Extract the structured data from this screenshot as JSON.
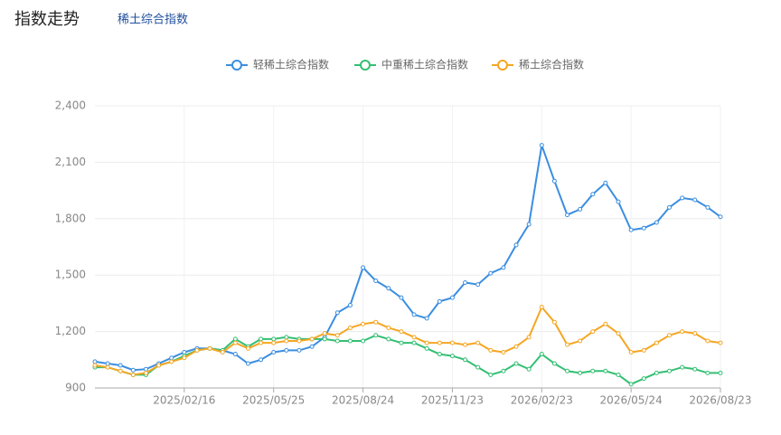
{
  "header": {
    "title": "指数走势",
    "tab": "稀土综合指数"
  },
  "chart_data": {
    "type": "line",
    "categories": [
      null,
      null,
      null,
      null,
      null,
      null,
      null,
      "2025/02/16",
      null,
      null,
      null,
      null,
      null,
      null,
      "2025/05/25",
      null,
      null,
      null,
      null,
      null,
      null,
      "2025/08/24",
      null,
      null,
      null,
      null,
      null,
      null,
      "2025/11/23",
      null,
      null,
      null,
      null,
      null,
      null,
      "2026/02/23",
      null,
      null,
      null,
      null,
      null,
      null,
      "2026/05/24",
      null,
      null,
      null,
      null,
      null,
      null,
      "2026/08/23"
    ],
    "series": [
      {
        "name": "轻稀土综合指数",
        "color": "#3b8ee0",
        "values": [
          1040,
          1030,
          1020,
          995,
          1000,
          1030,
          1060,
          1090,
          1110,
          1110,
          1100,
          1080,
          1030,
          1050,
          1090,
          1100,
          1100,
          1120,
          1170,
          1300,
          1340,
          1540,
          1470,
          1430,
          1380,
          1290,
          1270,
          1360,
          1380,
          1460,
          1450,
          1510,
          1540,
          1660,
          1770,
          2190,
          2000,
          1820,
          1850,
          1930,
          1990,
          1890,
          1740,
          1750,
          1780,
          1860,
          1910,
          1900,
          1860,
          1810
        ]
      },
      {
        "name": "中重稀土综合指数",
        "color": "#34bf73",
        "values": [
          1010,
          1010,
          990,
          970,
          970,
          1020,
          1040,
          1070,
          1100,
          1110,
          1100,
          1160,
          1120,
          1160,
          1160,
          1170,
          1160,
          1160,
          1160,
          1150,
          1150,
          1150,
          1180,
          1160,
          1140,
          1140,
          1110,
          1080,
          1070,
          1050,
          1010,
          970,
          990,
          1030,
          1000,
          1080,
          1030,
          990,
          980,
          990,
          990,
          970,
          920,
          950,
          980,
          990,
          1010,
          1000,
          980,
          980
        ]
      },
      {
        "name": "稀土综合指数",
        "color": "#f5a623",
        "values": [
          1020,
          1010,
          990,
          970,
          980,
          1020,
          1040,
          1060,
          1100,
          1110,
          1090,
          1140,
          1110,
          1140,
          1140,
          1150,
          1150,
          1160,
          1190,
          1180,
          1220,
          1240,
          1250,
          1220,
          1200,
          1170,
          1140,
          1140,
          1140,
          1130,
          1140,
          1100,
          1090,
          1120,
          1170,
          1330,
          1250,
          1130,
          1150,
          1200,
          1240,
          1190,
          1090,
          1100,
          1140,
          1180,
          1200,
          1190,
          1150,
          1140
        ]
      }
    ],
    "ylim": [
      900,
      2400
    ],
    "yticks": [
      900,
      {
        "value": 1200,
        "label": "1,200"
      },
      {
        "value": 1500,
        "label": "1,500"
      },
      {
        "value": 1800,
        "label": "1,800"
      },
      {
        "value": 2100,
        "label": "2,100"
      },
      {
        "value": 2400,
        "label": "2,400"
      }
    ],
    "grid": true
  }
}
